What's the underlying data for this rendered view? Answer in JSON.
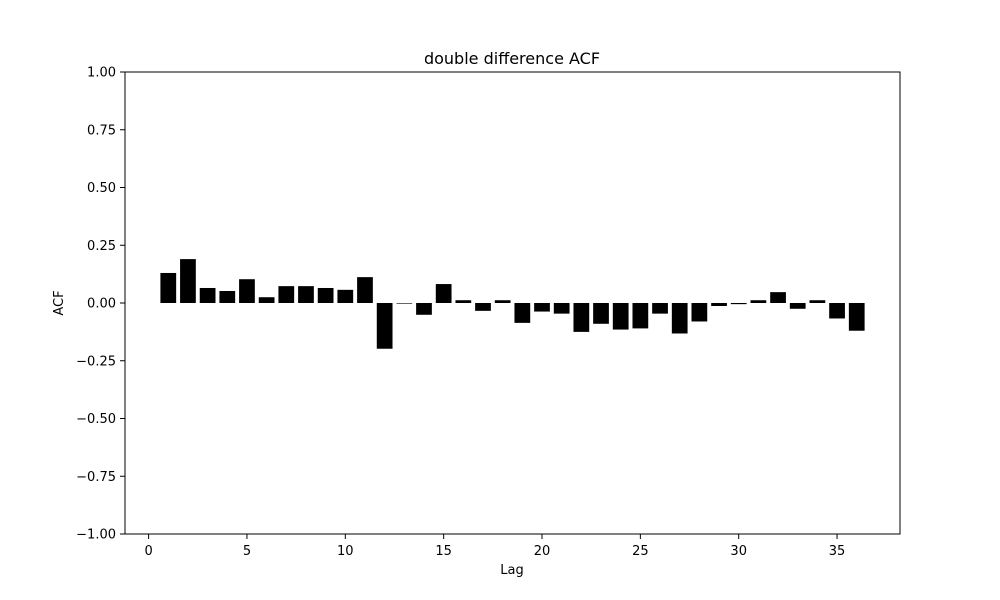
{
  "chart_data": {
    "type": "bar",
    "title": "double difference ACF",
    "xlabel": "Lag",
    "ylabel": "ACF",
    "xlim": [
      -1.2,
      38.2
    ],
    "ylim": [
      -1.0,
      1.0
    ],
    "xticks": [
      0,
      5,
      10,
      15,
      20,
      25,
      30,
      35
    ],
    "xtick_labels": [
      "0",
      "5",
      "10",
      "15",
      "20",
      "25",
      "30",
      "35"
    ],
    "yticks": [
      1.0,
      0.75,
      0.5,
      0.25,
      0.0,
      -0.25,
      -0.5,
      -0.75,
      -1.0
    ],
    "ytick_labels": [
      "1.00",
      "0.75",
      "0.50",
      "0.25",
      "0.00",
      "−0.25",
      "−0.50",
      "−0.75",
      "−1.00"
    ],
    "grid": false,
    "bar_color": "#000000",
    "x": [
      1,
      2,
      3,
      4,
      5,
      6,
      7,
      8,
      9,
      10,
      11,
      12,
      13,
      14,
      15,
      16,
      17,
      18,
      19,
      20,
      21,
      22,
      23,
      24,
      25,
      26,
      27,
      28,
      29,
      30,
      31,
      32,
      33,
      34,
      35,
      36
    ],
    "values": [
      0.13,
      0.19,
      0.065,
      0.052,
      0.103,
      0.025,
      0.073,
      0.073,
      0.065,
      0.057,
      0.112,
      -0.198,
      0.0,
      -0.051,
      0.082,
      0.012,
      -0.034,
      0.012,
      -0.086,
      -0.037,
      -0.046,
      -0.125,
      -0.09,
      -0.115,
      -0.11,
      -0.046,
      -0.132,
      -0.08,
      -0.013,
      -0.005,
      0.012,
      0.047,
      -0.025,
      0.012,
      -0.067,
      -0.12
    ]
  }
}
